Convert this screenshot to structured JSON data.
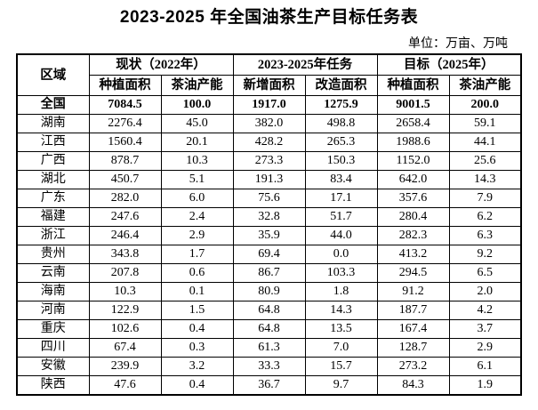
{
  "title": "2023-2025 年全国油茶生产目标任务表",
  "unit_note": "单位：万亩、万吨",
  "table": {
    "region_header": "区域",
    "group_headers": [
      "现状（2022年）",
      "2023-2025年任务",
      "目标（2025年）"
    ],
    "sub_headers": [
      "种植面积",
      "茶油产能",
      "新增面积",
      "改造面积",
      "种植面积",
      "茶油产能"
    ],
    "rows": [
      {
        "region": "全国",
        "bold": true,
        "values": [
          "7084.5",
          "100.0",
          "1917.0",
          "1275.9",
          "9001.5",
          "200.0"
        ]
      },
      {
        "region": "湖南",
        "bold": false,
        "values": [
          "2276.4",
          "45.0",
          "382.0",
          "498.8",
          "2658.4",
          "59.1"
        ]
      },
      {
        "region": "江西",
        "bold": false,
        "values": [
          "1560.4",
          "20.1",
          "428.2",
          "265.3",
          "1988.6",
          "44.1"
        ]
      },
      {
        "region": "广西",
        "bold": false,
        "values": [
          "878.7",
          "10.3",
          "273.3",
          "150.3",
          "1152.0",
          "25.6"
        ]
      },
      {
        "region": "湖北",
        "bold": false,
        "values": [
          "450.7",
          "5.1",
          "191.3",
          "83.4",
          "642.0",
          "14.3"
        ]
      },
      {
        "region": "广东",
        "bold": false,
        "values": [
          "282.0",
          "6.0",
          "75.6",
          "17.1",
          "357.6",
          "7.9"
        ]
      },
      {
        "region": "福建",
        "bold": false,
        "values": [
          "247.6",
          "2.4",
          "32.8",
          "51.7",
          "280.4",
          "6.2"
        ]
      },
      {
        "region": "浙江",
        "bold": false,
        "values": [
          "246.4",
          "2.9",
          "35.9",
          "44.0",
          "282.3",
          "6.3"
        ]
      },
      {
        "region": "贵州",
        "bold": false,
        "values": [
          "343.8",
          "1.7",
          "69.4",
          "0.0",
          "413.2",
          "9.2"
        ]
      },
      {
        "region": "云南",
        "bold": false,
        "values": [
          "207.8",
          "0.6",
          "86.7",
          "103.3",
          "294.5",
          "6.5"
        ]
      },
      {
        "region": "海南",
        "bold": false,
        "values": [
          "10.3",
          "0.1",
          "80.9",
          "1.8",
          "91.2",
          "2.0"
        ]
      },
      {
        "region": "河南",
        "bold": false,
        "values": [
          "122.9",
          "1.5",
          "64.8",
          "14.3",
          "187.7",
          "4.2"
        ]
      },
      {
        "region": "重庆",
        "bold": false,
        "values": [
          "102.6",
          "0.4",
          "64.8",
          "13.5",
          "167.4",
          "3.7"
        ]
      },
      {
        "region": "四川",
        "bold": false,
        "values": [
          "67.4",
          "0.3",
          "61.3",
          "7.0",
          "128.7",
          "2.9"
        ]
      },
      {
        "region": "安徽",
        "bold": false,
        "values": [
          "239.9",
          "3.2",
          "33.3",
          "15.7",
          "273.2",
          "6.1"
        ]
      },
      {
        "region": "陕西",
        "bold": false,
        "values": [
          "47.6",
          "0.4",
          "36.7",
          "9.7",
          "84.3",
          "1.9"
        ]
      }
    ]
  },
  "chart_data": {
    "type": "table",
    "title": "2023-2025 年全国油茶生产目标任务表",
    "unit": "万亩、万吨",
    "columns": [
      "区域",
      "现状(2022年)种植面积",
      "现状(2022年)茶油产能",
      "2023-2025年任务新增面积",
      "2023-2025年任务改造面积",
      "目标(2025年)种植面积",
      "目标(2025年)茶油产能"
    ],
    "rows": [
      [
        "全国",
        7084.5,
        100.0,
        1917.0,
        1275.9,
        9001.5,
        200.0
      ],
      [
        "湖南",
        2276.4,
        45.0,
        382.0,
        498.8,
        2658.4,
        59.1
      ],
      [
        "江西",
        1560.4,
        20.1,
        428.2,
        265.3,
        1988.6,
        44.1
      ],
      [
        "广西",
        878.7,
        10.3,
        273.3,
        150.3,
        1152.0,
        25.6
      ],
      [
        "湖北",
        450.7,
        5.1,
        191.3,
        83.4,
        642.0,
        14.3
      ],
      [
        "广东",
        282.0,
        6.0,
        75.6,
        17.1,
        357.6,
        7.9
      ],
      [
        "福建",
        247.6,
        2.4,
        32.8,
        51.7,
        280.4,
        6.2
      ],
      [
        "浙江",
        246.4,
        2.9,
        35.9,
        44.0,
        282.3,
        6.3
      ],
      [
        "贵州",
        343.8,
        1.7,
        69.4,
        0.0,
        413.2,
        9.2
      ],
      [
        "云南",
        207.8,
        0.6,
        86.7,
        103.3,
        294.5,
        6.5
      ],
      [
        "海南",
        10.3,
        0.1,
        80.9,
        1.8,
        91.2,
        2.0
      ],
      [
        "河南",
        122.9,
        1.5,
        64.8,
        14.3,
        187.7,
        4.2
      ],
      [
        "重庆",
        102.6,
        0.4,
        64.8,
        13.5,
        167.4,
        3.7
      ],
      [
        "四川",
        67.4,
        0.3,
        61.3,
        7.0,
        128.7,
        2.9
      ],
      [
        "安徽",
        239.9,
        3.2,
        33.3,
        15.7,
        273.2,
        6.1
      ],
      [
        "陕西",
        47.6,
        0.4,
        36.7,
        9.7,
        84.3,
        1.9
      ]
    ]
  }
}
